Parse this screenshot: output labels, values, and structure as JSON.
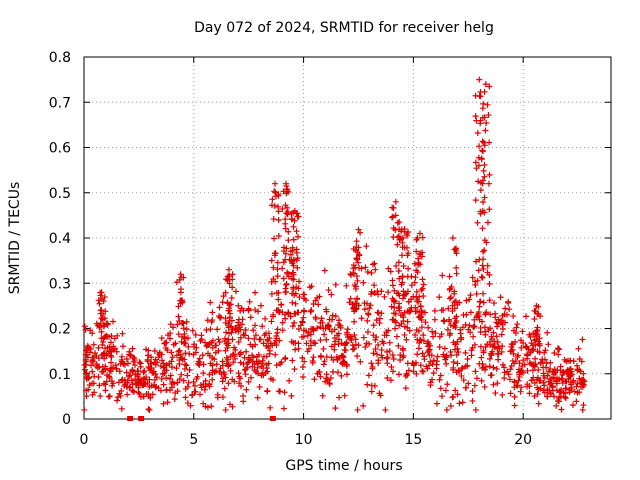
{
  "chart_data": {
    "type": "scatter",
    "title": "Day 072 of 2024, SRMTID for receiver helg",
    "xlabel": "GPS time / hours",
    "ylabel": "SRMTID / TECUs",
    "xlim": [
      0,
      24
    ],
    "ylim": [
      0,
      0.8
    ],
    "x_ticks": [
      0,
      5,
      10,
      15,
      20
    ],
    "x_tick_labels": [
      "0",
      "5",
      "10",
      "15",
      "20"
    ],
    "y_ticks": [
      0,
      0.1,
      0.2,
      0.3,
      0.4,
      0.5,
      0.6,
      0.7,
      0.8
    ],
    "y_tick_labels": [
      "0",
      "0.1",
      "0.2",
      "0.3",
      "0.4",
      "0.5",
      "0.6",
      "0.7",
      "0.8"
    ],
    "grid": true,
    "series": [
      {
        "name": "SRMTID",
        "marker": "plus",
        "color": "#e00000",
        "baseline_trend": [
          [
            0.0,
            0.13
          ],
          [
            0.5,
            0.12
          ],
          [
            1.0,
            0.15
          ],
          [
            1.5,
            0.12
          ],
          [
            2.0,
            0.09
          ],
          [
            2.5,
            0.08
          ],
          [
            3.0,
            0.09
          ],
          [
            3.5,
            0.1
          ],
          [
            4.0,
            0.12
          ],
          [
            4.5,
            0.13
          ],
          [
            5.0,
            0.11
          ],
          [
            5.5,
            0.12
          ],
          [
            6.0,
            0.14
          ],
          [
            6.5,
            0.16
          ],
          [
            7.0,
            0.15
          ],
          [
            7.5,
            0.16
          ],
          [
            8.0,
            0.15
          ],
          [
            8.5,
            0.14
          ],
          [
            9.0,
            0.2
          ],
          [
            9.5,
            0.24
          ],
          [
            10.0,
            0.2
          ],
          [
            10.5,
            0.18
          ],
          [
            11.0,
            0.16
          ],
          [
            11.5,
            0.17
          ],
          [
            12.0,
            0.2
          ],
          [
            12.5,
            0.24
          ],
          [
            13.0,
            0.2
          ],
          [
            13.5,
            0.19
          ],
          [
            14.0,
            0.2
          ],
          [
            14.5,
            0.22
          ],
          [
            15.0,
            0.21
          ],
          [
            15.5,
            0.17
          ],
          [
            16.0,
            0.15
          ],
          [
            16.5,
            0.17
          ],
          [
            17.0,
            0.14
          ],
          [
            17.5,
            0.16
          ],
          [
            18.0,
            0.18
          ],
          [
            18.5,
            0.19
          ],
          [
            19.0,
            0.18
          ],
          [
            19.5,
            0.14
          ],
          [
            20.0,
            0.12
          ],
          [
            20.5,
            0.11
          ],
          [
            21.0,
            0.1
          ],
          [
            21.5,
            0.09
          ],
          [
            22.0,
            0.09
          ],
          [
            22.5,
            0.08
          ],
          [
            22.8,
            0.1
          ]
        ],
        "peaks": [
          {
            "x": 0.8,
            "y": 0.28
          },
          {
            "x": 4.4,
            "y": 0.32
          },
          {
            "x": 6.6,
            "y": 0.33
          },
          {
            "x": 8.7,
            "y": 0.52
          },
          {
            "x": 9.2,
            "y": 0.52
          },
          {
            "x": 9.6,
            "y": 0.46
          },
          {
            "x": 12.4,
            "y": 0.38
          },
          {
            "x": 14.2,
            "y": 0.48
          },
          {
            "x": 14.6,
            "y": 0.42
          },
          {
            "x": 15.3,
            "y": 0.41
          },
          {
            "x": 16.8,
            "y": 0.4
          },
          {
            "x": 18.0,
            "y": 0.75
          },
          {
            "x": 18.3,
            "y": 0.74
          },
          {
            "x": 20.6,
            "y": 0.25
          }
        ],
        "zero_values_at_x": [
          2.1,
          2.6,
          8.6
        ]
      }
    ]
  }
}
